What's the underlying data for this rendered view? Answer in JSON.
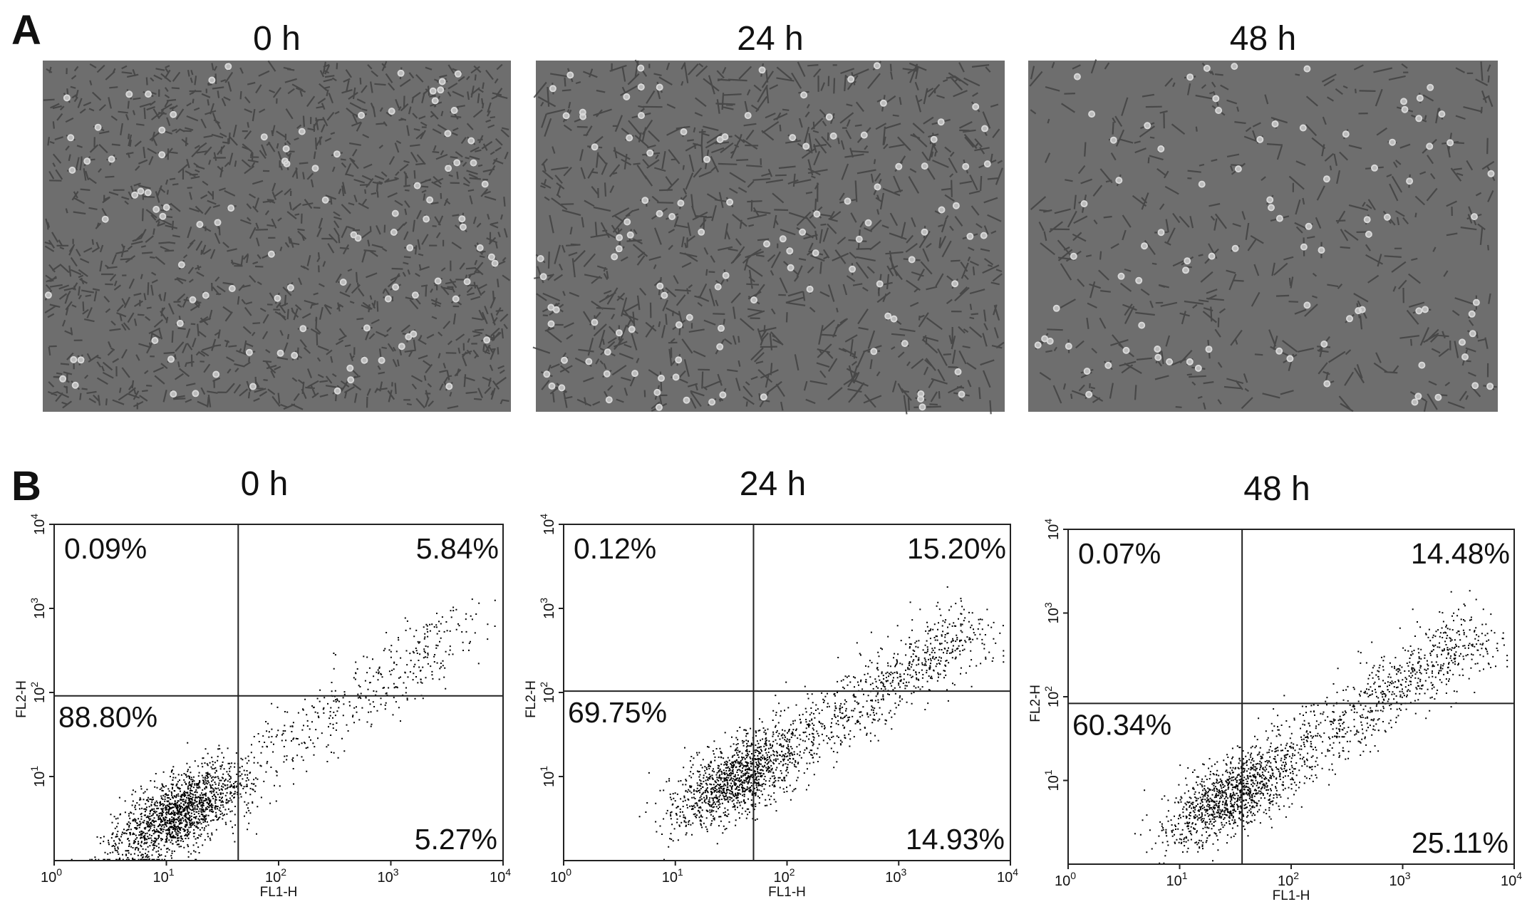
{
  "panel_a": {
    "label": "A",
    "images": [
      {
        "title": "0 h"
      },
      {
        "title": "24 h"
      },
      {
        "title": "48 h"
      }
    ]
  },
  "panel_b": {
    "label": "B",
    "x_label": "FL1-H",
    "y_label": "FL2-H",
    "tick_base": "10",
    "x_ticks": [
      "0",
      "1",
      "2",
      "3",
      "4"
    ],
    "y_ticks": [
      "1",
      "2",
      "3",
      "4"
    ],
    "plots": [
      {
        "title": "0 h",
        "upper_left": "0.09%",
        "upper_right": "5.84%",
        "lower_left": "88.80%",
        "lower_right": "5.27%"
      },
      {
        "title": "24 h",
        "upper_left": "0.12%",
        "upper_right": "15.20%",
        "lower_left": "69.75%",
        "lower_right": "14.93%"
      },
      {
        "title": "48 h",
        "upper_left": "0.07%",
        "upper_right": "14.48%",
        "lower_left": "60.34%",
        "lower_right": "25.11%"
      }
    ]
  }
}
